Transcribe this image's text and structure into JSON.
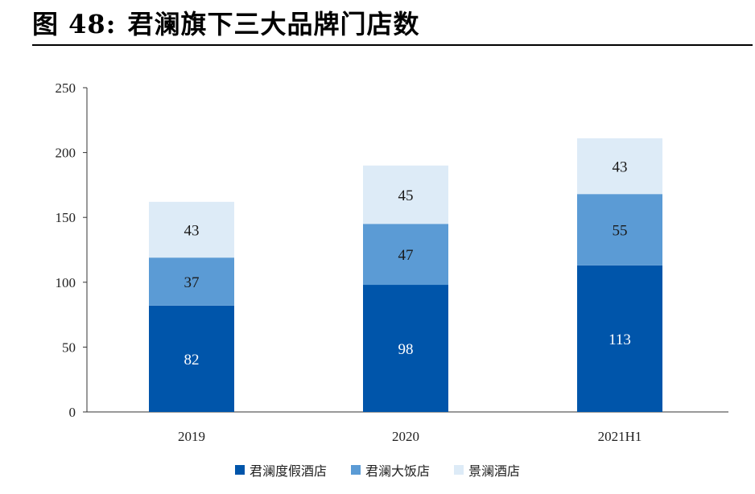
{
  "figure": {
    "prefix": "图 48:",
    "title": "君澜旗下三大品牌门店数"
  },
  "chart_data": {
    "type": "bar",
    "stacked": true,
    "categories": [
      "2019",
      "2020",
      "2021H1"
    ],
    "series": [
      {
        "name": "君澜度假酒店",
        "values": [
          82,
          98,
          113
        ],
        "color": "#0055AA",
        "label_color": "#FFFFFF"
      },
      {
        "name": "君澜大饭店",
        "values": [
          37,
          47,
          55
        ],
        "color": "#5B9BD5",
        "label_color": "#1A1A1A"
      },
      {
        "name": "景澜酒店",
        "values": [
          43,
          45,
          43
        ],
        "color": "#DDEBF7",
        "label_color": "#1A1A1A"
      }
    ],
    "ylim": [
      0,
      250
    ],
    "yticks": [
      0,
      50,
      100,
      150,
      200,
      250
    ],
    "grid": false,
    "legend_position": "bottom"
  }
}
